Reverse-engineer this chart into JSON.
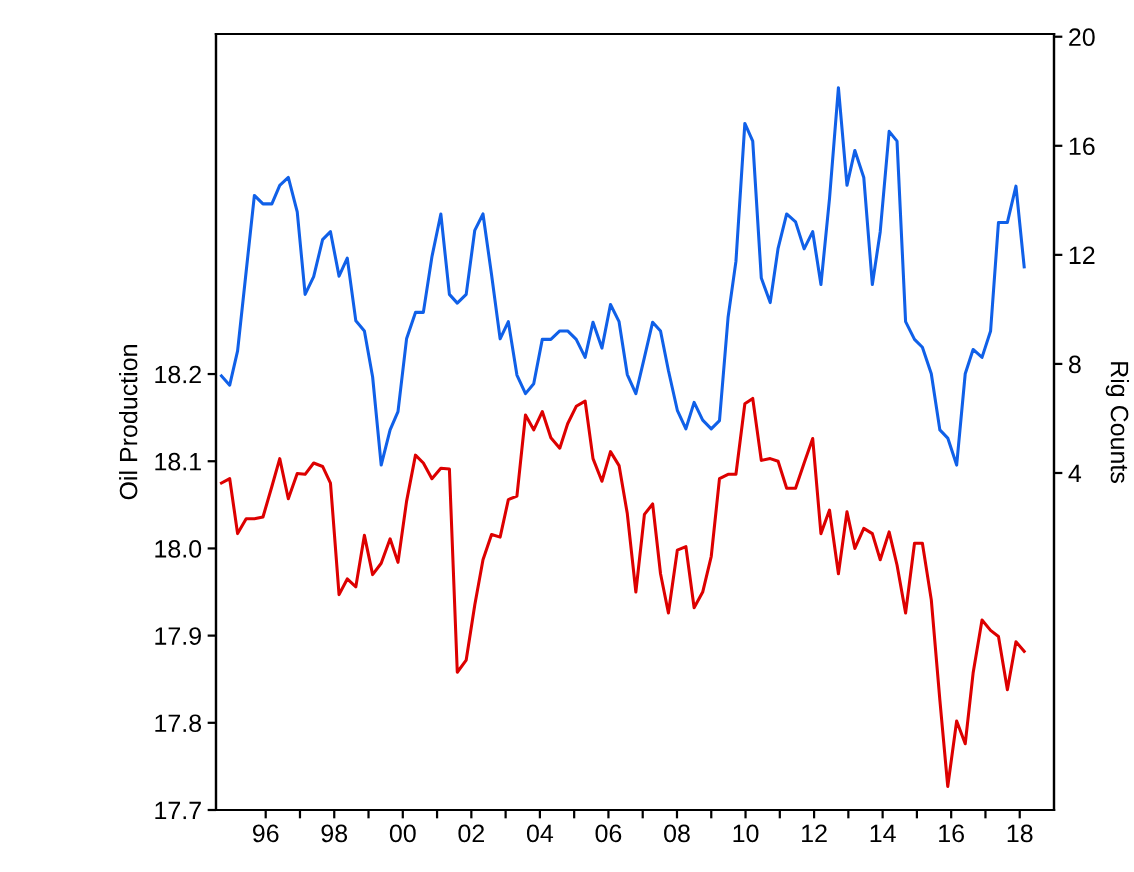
{
  "chart_data": {
    "type": "line",
    "ylabel": "Oil Production",
    "y2label": "Rig Counts",
    "x": [
      1994.71,
      1994.95,
      1995.18,
      1995.43,
      1995.67,
      1995.92,
      1996.18,
      1996.41,
      1996.66,
      1996.92,
      1997.15,
      1997.4,
      1997.66,
      1997.89,
      1998.14,
      1998.38,
      1998.63,
      1998.88,
      1999.12,
      1999.37,
      1999.63,
      1999.86,
      2000.11,
      2000.37,
      2000.6,
      2000.85,
      2001.11,
      2001.36,
      2001.59,
      2001.85,
      2002.1,
      2002.34,
      2002.59,
      2002.84,
      2003.08,
      2003.33,
      2003.58,
      2003.82,
      2004.07,
      2004.32,
      2004.58,
      2004.81,
      2005.06,
      2005.32,
      2005.55,
      2005.81,
      2006.06,
      2006.31,
      2006.55,
      2006.8,
      2007.05,
      2007.29,
      2007.52,
      2007.75,
      2008.01,
      2008.26,
      2008.5,
      2008.75,
      2009.0,
      2009.24,
      2009.49,
      2009.72,
      2009.98,
      2010.21,
      2010.46,
      2010.72,
      2010.95,
      2011.2,
      2011.46,
      2011.71,
      2011.96,
      2012.2,
      2012.45,
      2012.71,
      2012.96,
      2013.19,
      2013.45,
      2013.7,
      2013.93,
      2014.19,
      2014.42,
      2014.67,
      2014.93,
      2015.16,
      2015.42,
      2015.67,
      2015.9,
      2016.16,
      2016.41,
      2016.64,
      2016.9,
      2017.15,
      2017.38,
      2017.64,
      2017.89,
      2018.13
    ],
    "series": [
      {
        "color": "#dd0000",
        "values": [
          18.075,
          18.08,
          18.017,
          18.034,
          18.034,
          18.036,
          18.071,
          18.103,
          18.057,
          18.086,
          18.085,
          18.098,
          18.094,
          18.075,
          17.947,
          17.965,
          17.956,
          18.015,
          17.97,
          17.983,
          18.011,
          17.984,
          18.054,
          18.107,
          18.098,
          18.08,
          18.092,
          18.091,
          17.858,
          17.872,
          17.935,
          17.987,
          18.016,
          18.013,
          18.056,
          18.06,
          18.153,
          18.136,
          18.157,
          18.127,
          18.115,
          18.143,
          18.163,
          18.169,
          18.103,
          18.077,
          18.111,
          18.095,
          18.04,
          17.95,
          18.039,
          18.051,
          17.971,
          17.926,
          17.998,
          18.002,
          17.932,
          17.95,
          17.991,
          18.08,
          18.085,
          18.085,
          18.166,
          18.172,
          18.101,
          18.103,
          18.1,
          18.069,
          18.069,
          18.098,
          18.126,
          18.017,
          18.044,
          17.971,
          18.042,
          18.0,
          18.023,
          18.017,
          17.987,
          18.019,
          17.981,
          17.926,
          18.006,
          18.006,
          17.941,
          17.826,
          17.727,
          17.802,
          17.776,
          17.857,
          17.918,
          17.906,
          17.899,
          17.838,
          17.893,
          17.882
        ]
      },
      {
        "color": "#1060e8",
        "axis": "y2",
        "values": [
          7.56,
          7.22,
          8.48,
          11.39,
          14.18,
          13.87,
          13.87,
          14.55,
          14.84,
          13.58,
          10.55,
          11.2,
          12.56,
          12.85,
          11.22,
          11.88,
          9.58,
          9.21,
          7.52,
          4.29,
          5.58,
          6.25,
          8.92,
          9.89,
          9.89,
          11.93,
          13.5,
          10.55,
          10.23,
          10.55,
          12.9,
          13.5,
          11.27,
          8.92,
          9.55,
          7.59,
          6.91,
          7.27,
          8.9,
          8.9,
          9.21,
          9.21,
          8.9,
          8.24,
          9.53,
          8.58,
          10.18,
          9.55,
          7.61,
          6.91,
          8.24,
          9.53,
          9.21,
          7.76,
          6.3,
          5.62,
          6.59,
          5.94,
          5.62,
          5.92,
          9.7,
          11.76,
          16.82,
          16.17,
          11.15,
          10.25,
          12.24,
          13.5,
          13.21,
          12.22,
          12.85,
          10.91,
          14.06,
          18.13,
          14.55,
          15.83,
          14.84,
          10.91,
          12.85,
          16.53,
          16.17,
          9.55,
          8.9,
          8.61,
          7.64,
          5.58,
          5.28,
          4.29,
          7.64,
          8.53,
          8.24,
          9.21,
          13.19,
          13.19,
          14.52,
          11.56
        ]
      }
    ],
    "xlim": [
      1994.55,
      2019.0
    ],
    "xticks": [
      {
        "value": 1996,
        "label": "96"
      },
      {
        "value": 1997,
        "label": null
      },
      {
        "value": 1998,
        "label": "98"
      },
      {
        "value": 1999,
        "label": null
      },
      {
        "value": 2000,
        "label": "00"
      },
      {
        "value": 2001,
        "label": null
      },
      {
        "value": 2002,
        "label": "02"
      },
      {
        "value": 2003,
        "label": null
      },
      {
        "value": 2004,
        "label": "04"
      },
      {
        "value": 2005,
        "label": null
      },
      {
        "value": 2006,
        "label": "06"
      },
      {
        "value": 2007,
        "label": null
      },
      {
        "value": 2008,
        "label": "08"
      },
      {
        "value": 2009,
        "label": null
      },
      {
        "value": 2010,
        "label": "10"
      },
      {
        "value": 2011,
        "label": null
      },
      {
        "value": 2012,
        "label": "12"
      },
      {
        "value": 2013,
        "label": null
      },
      {
        "value": 2014,
        "label": "14"
      },
      {
        "value": 2015,
        "label": null
      },
      {
        "value": 2016,
        "label": "16"
      },
      {
        "value": 2017,
        "label": null
      },
      {
        "value": 2018,
        "label": "18"
      }
    ],
    "ylim": [
      17.7,
      18.59
    ],
    "yticks": [
      17.7,
      17.8,
      17.9,
      {
        "value": 18.0,
        "label": "18.0"
      },
      18.1,
      18.2
    ],
    "y2lim": [
      -8.36,
      20.1
    ],
    "y2ticks": [
      4,
      8,
      12,
      16,
      20
    ],
    "grid": false,
    "legend": false,
    "marker": "none",
    "line_style": "solid"
  }
}
